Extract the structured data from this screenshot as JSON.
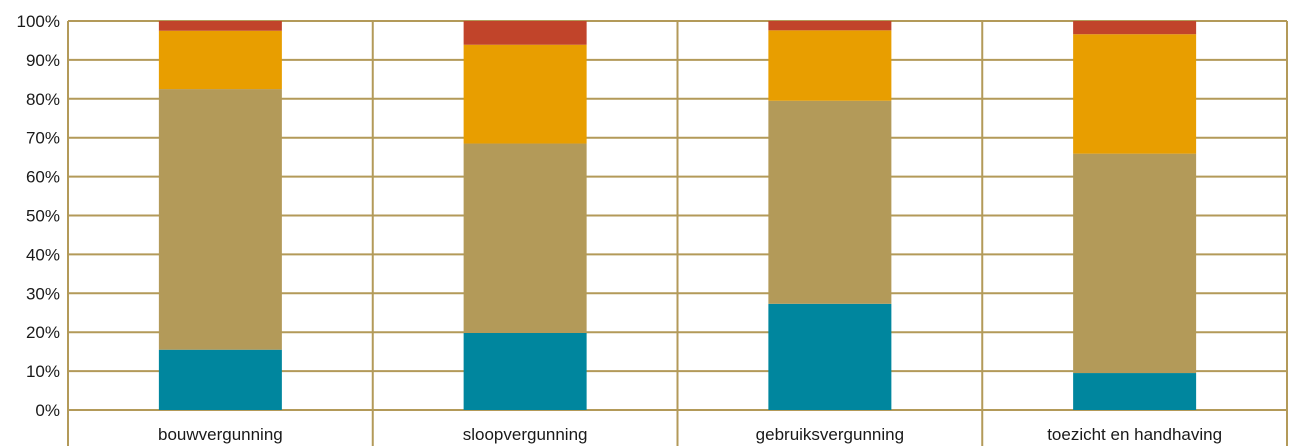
{
  "chart_data": {
    "type": "bar",
    "stacked": true,
    "normalized": true,
    "categories": [
      "bouwvergunning",
      "sloopvergunning",
      "gebruiksvergunning",
      "toezicht en handhaving"
    ],
    "series": [
      {
        "color": "#00869e",
        "values": [
          15.5,
          19.8,
          27.3,
          9.5
        ]
      },
      {
        "color": "#b39a59",
        "values": [
          67.0,
          48.7,
          52.2,
          56.4
        ]
      },
      {
        "color": "#e89e00",
        "values": [
          15.0,
          25.4,
          18.1,
          30.7
        ]
      },
      {
        "color": "#c1442a",
        "values": [
          2.5,
          6.1,
          2.4,
          3.4
        ]
      }
    ],
    "ylim": [
      0,
      100
    ],
    "yticks": [
      "0%",
      "10%",
      "20%",
      "30%",
      "40%",
      "50%",
      "60%",
      "70%",
      "80%",
      "90%",
      "100%"
    ],
    "grid": true,
    "grid_color": "#b39a59"
  }
}
